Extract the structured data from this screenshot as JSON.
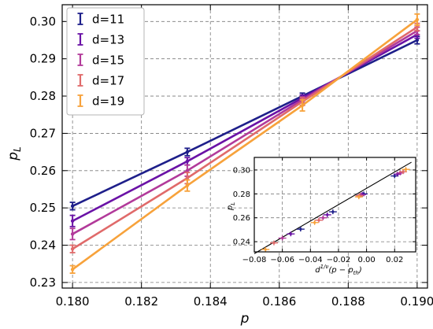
{
  "colors": {
    "d11": "#1e1f8a",
    "d13": "#6a12a6",
    "d15": "#b23a9a",
    "d17": "#e06a6a",
    "d19": "#f7a23b",
    "grid": "#7a7a7a",
    "fit": "#000000"
  },
  "chart_data": [
    {
      "type": "line",
      "xlabel": "p",
      "ylabel": "p_L",
      "xlim": [
        0.1797,
        0.1903
      ],
      "ylim": [
        0.2285,
        0.3045
      ],
      "xticks": [
        0.18,
        0.182,
        0.184,
        0.186,
        0.188,
        0.19
      ],
      "xtick_labels": [
        "0.180",
        "0.182",
        "0.184",
        "0.186",
        "0.188",
        "0.190"
      ],
      "yticks": [
        0.23,
        0.24,
        0.25,
        0.26,
        0.27,
        0.28,
        0.29,
        0.3
      ],
      "ytick_labels": [
        "0.23",
        "0.24",
        "0.25",
        "0.26",
        "0.27",
        "0.28",
        "0.29",
        "0.30"
      ],
      "grid": true,
      "legend": "top-left",
      "x": [
        0.18,
        0.18333,
        0.18667,
        0.19
      ],
      "series": [
        {
          "name": "d=11",
          "color_key": "d11",
          "values": [
            0.2505,
            0.265,
            0.28,
            0.295
          ],
          "errors": [
            0.001,
            0.001,
            0.0008,
            0.001
          ]
        },
        {
          "name": "d=13",
          "color_key": "d13",
          "values": [
            0.2465,
            0.2625,
            0.2795,
            0.2965
          ],
          "errors": [
            0.0015,
            0.001,
            0.0008,
            0.001
          ]
        },
        {
          "name": "d=15",
          "color_key": "d15",
          "values": [
            0.243,
            0.26,
            0.279,
            0.2975
          ],
          "errors": [
            0.0015,
            0.0015,
            0.0008,
            0.001
          ]
        },
        {
          "name": "d=17",
          "color_key": "d17",
          "values": [
            0.239,
            0.258,
            0.2785,
            0.2985
          ],
          "errors": [
            0.001,
            0.0015,
            0.001,
            0.001
          ]
        },
        {
          "name": "d=19",
          "color_key": "d19",
          "values": [
            0.2335,
            0.256,
            0.2775,
            0.3005
          ],
          "errors": [
            0.001,
            0.0015,
            0.0015,
            0.0015
          ]
        }
      ]
    },
    {
      "type": "scatter",
      "inset": true,
      "xlabel": "d^{1/ν}(p − p_{th})",
      "ylabel": "p_L",
      "xlim": [
        -0.08,
        0.035
      ],
      "ylim": [
        0.2315,
        0.3105
      ],
      "xticks": [
        -0.08,
        -0.06,
        -0.04,
        -0.02,
        0.0,
        0.02
      ],
      "xtick_labels": [
        "−0.08",
        "−0.06",
        "−0.04",
        "−0.02",
        "0.00",
        "0.02"
      ],
      "yticks": [
        0.24,
        0.26,
        0.28,
        0.3
      ],
      "ytick_labels": [
        "0.24",
        "0.26",
        "0.28",
        "0.30"
      ],
      "grid": true,
      "fit_line": {
        "x": [
          -0.08,
          0.032
        ],
        "y": [
          0.23,
          0.3065
        ]
      },
      "series": [
        {
          "name": "d=11",
          "color_key": "d11",
          "x": [
            -0.047,
            -0.024,
            -0.002,
            0.02
          ],
          "values": [
            0.2505,
            0.265,
            0.28,
            0.295
          ]
        },
        {
          "name": "d=13",
          "color_key": "d13",
          "x": [
            -0.054,
            -0.028,
            -0.003,
            0.022
          ],
          "values": [
            0.2465,
            0.2625,
            0.2795,
            0.2965
          ]
        },
        {
          "name": "d=15",
          "color_key": "d15",
          "x": [
            -0.06,
            -0.031,
            -0.004,
            0.024
          ],
          "values": [
            0.243,
            0.26,
            0.279,
            0.2975
          ]
        },
        {
          "name": "d=17",
          "color_key": "d17",
          "x": [
            -0.066,
            -0.034,
            -0.005,
            0.026
          ],
          "values": [
            0.239,
            0.258,
            0.2785,
            0.2985
          ]
        },
        {
          "name": "d=19",
          "color_key": "d19",
          "x": [
            -0.072,
            -0.037,
            -0.0055,
            0.028
          ],
          "values": [
            0.2335,
            0.256,
            0.2775,
            0.3005
          ]
        }
      ]
    }
  ]
}
